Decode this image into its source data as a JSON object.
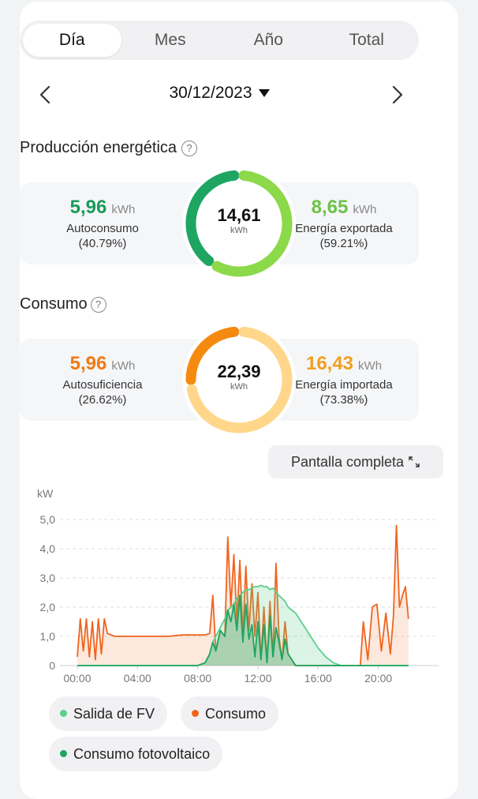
{
  "tabs": [
    {
      "label": "Día",
      "active": true
    },
    {
      "label": "Mes"
    },
    {
      "label": "Año"
    },
    {
      "label": "Total"
    }
  ],
  "date": "30/12/2023",
  "production": {
    "title": "Producción energética",
    "left": {
      "value": "5,96",
      "unit": "kWh",
      "label": "Autoconsumo",
      "pct": "(40.79%)",
      "color": "#1a9a5a"
    },
    "center": {
      "value": "14,61",
      "unit": "kWh",
      "fraction": 0.4079
    },
    "right": {
      "value": "8,65",
      "unit": "kWh",
      "label": "Energía exportada",
      "pct": "(59.21%)",
      "color": "#6cc24a"
    },
    "colors": {
      "primary": "#1fa562",
      "secondary": "#8cd94a"
    }
  },
  "consumption": {
    "title": "Consumo",
    "left": {
      "value": "5,96",
      "unit": "kWh",
      "label": "Autosuficiencia",
      "pct": "(26.62%)",
      "color": "#f07a12"
    },
    "center": {
      "value": "22,39",
      "unit": "kWh",
      "fraction": 0.2662
    },
    "right": {
      "value": "16,43",
      "unit": "kWh",
      "label": "Energía importada",
      "pct": "(73.38%)",
      "color": "#f0a020"
    },
    "colors": {
      "primary": "#f58a10",
      "secondary": "#ffd68a"
    }
  },
  "fullscreen_label": "Pantalla completa",
  "chart_data": {
    "type": "line",
    "ylabel": "kW",
    "ylim": [
      0,
      5
    ],
    "yticks": [
      "0",
      "1,0",
      "2,0",
      "3,0",
      "4,0",
      "5,0"
    ],
    "xticks": [
      "00:00",
      "04:00",
      "08:00",
      "12:00",
      "16:00",
      "20:00"
    ],
    "x_hours": [
      0,
      0.2,
      0.4,
      0.6,
      0.8,
      1.0,
      1.2,
      1.4,
      1.6,
      1.8,
      2.0,
      2.5,
      3,
      4,
      5,
      6,
      7,
      8,
      8.5,
      8.8,
      9.0,
      9.2,
      9.5,
      9.8,
      10.0,
      10.2,
      10.4,
      10.6,
      10.8,
      11.0,
      11.2,
      11.4,
      11.6,
      11.8,
      12.0,
      12.2,
      12.4,
      12.6,
      12.8,
      13.0,
      13.2,
      13.4,
      13.6,
      13.8,
      14.0,
      14.5,
      15,
      15.5,
      16,
      16.5,
      17,
      17.5,
      18,
      18.5,
      18.8,
      19.0,
      19.3,
      19.6,
      19.9,
      20.2,
      20.5,
      20.8,
      21.0,
      21.2,
      21.4,
      21.6,
      21.8,
      22.0
    ],
    "series": [
      {
        "name": "Salida de FV",
        "color": "#5ccf8c",
        "values": [
          0,
          0,
          0,
          0,
          0,
          0,
          0,
          0,
          0,
          0,
          0,
          0,
          0,
          0,
          0,
          0,
          0,
          0,
          0.1,
          0.4,
          0.8,
          1.0,
          1.3,
          1.6,
          1.9,
          2.0,
          2.1,
          2.3,
          2.4,
          2.5,
          2.6,
          2.6,
          2.65,
          2.7,
          2.7,
          2.75,
          2.7,
          2.7,
          2.6,
          2.65,
          2.5,
          2.4,
          2.3,
          2.2,
          2.0,
          1.8,
          1.4,
          1.0,
          0.6,
          0.3,
          0.1,
          0,
          0,
          0,
          0,
          0,
          0,
          0,
          0,
          0,
          0,
          0,
          0,
          0,
          0,
          0,
          0,
          0
        ]
      },
      {
        "name": "Consumo",
        "color": "#f0641e",
        "values": [
          0.3,
          1.6,
          0.5,
          1.6,
          0.3,
          1.5,
          0.2,
          1.6,
          0.4,
          1.6,
          1.1,
          1.0,
          1.0,
          1.0,
          1.0,
          1.0,
          1.05,
          1.05,
          1.05,
          1.1,
          2.4,
          0.5,
          1.2,
          1.0,
          4.4,
          2.0,
          3.8,
          1.5,
          3.6,
          1.0,
          3.4,
          1.2,
          2.8,
          1.0,
          2.5,
          0.2,
          2.0,
          0.1,
          2.2,
          0.3,
          3.5,
          1.0,
          0.2,
          1.5,
          0.4,
          0,
          0,
          0,
          0,
          0,
          0,
          0,
          0,
          0,
          0,
          1.5,
          0.2,
          2.0,
          2.1,
          0.5,
          1.8,
          0.4,
          1.7,
          4.8,
          2.0,
          2.4,
          2.7,
          1.6
        ]
      },
      {
        "name": "Consumo fotovoltaico",
        "color": "#1fa562",
        "values": [
          0,
          0,
          0,
          0,
          0,
          0,
          0,
          0,
          0,
          0,
          0,
          0,
          0,
          0,
          0,
          0,
          0,
          0,
          0.1,
          0.4,
          0.8,
          0.5,
          1.2,
          1.0,
          1.9,
          1.5,
          2.1,
          1.2,
          2.4,
          0.8,
          2.1,
          0.9,
          1.4,
          0.3,
          1.5,
          0.2,
          1.4,
          0.1,
          1.7,
          0.3,
          1.3,
          0.8,
          0.2,
          0.9,
          0.4,
          0,
          0,
          0,
          0,
          0,
          0,
          0,
          0,
          0,
          0,
          0,
          0,
          0,
          0,
          0,
          0,
          0,
          0,
          0,
          0,
          0,
          0,
          0
        ]
      }
    ],
    "legend": [
      "Salida de FV",
      "Consumo",
      "Consumo fotovoltaico"
    ]
  }
}
